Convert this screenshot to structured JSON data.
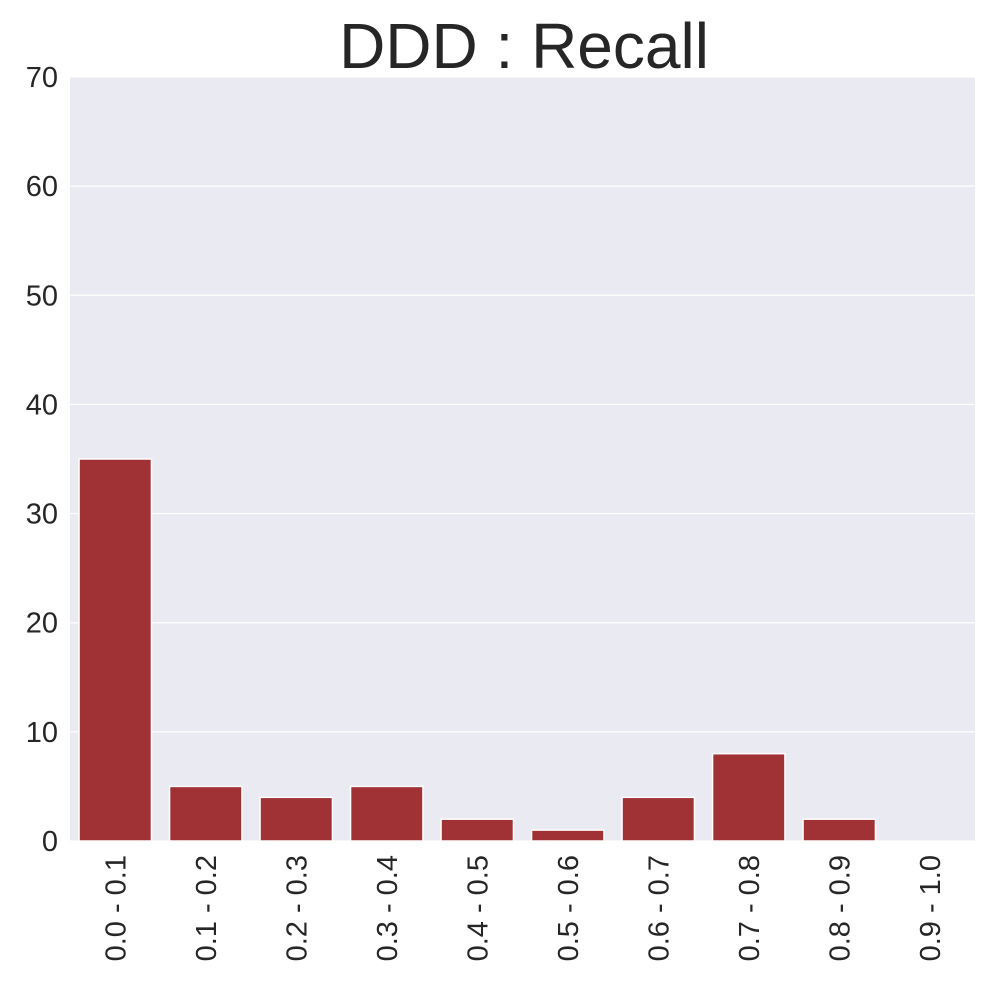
{
  "chart_data": {
    "type": "bar",
    "title": "DDD : Recall",
    "xlabel": "",
    "ylabel": "",
    "categories": [
      "0.0 - 0.1",
      "0.1 - 0.2",
      "0.2 - 0.3",
      "0.3 - 0.4",
      "0.4 - 0.5",
      "0.5 - 0.6",
      "0.6 - 0.7",
      "0.7 - 0.8",
      "0.8 - 0.9",
      "0.9 - 1.0"
    ],
    "values": [
      35,
      5,
      4,
      5,
      2,
      1,
      4,
      8,
      2,
      0
    ],
    "ylim": [
      0,
      70
    ],
    "yticks": [
      0,
      10,
      20,
      30,
      40,
      50,
      60,
      70
    ],
    "grid": true,
    "legend": "none",
    "colors": {
      "bar": "#a03235",
      "plot_background": "#eaeaf2",
      "grid": "#ffffff",
      "text": "#262626"
    }
  }
}
